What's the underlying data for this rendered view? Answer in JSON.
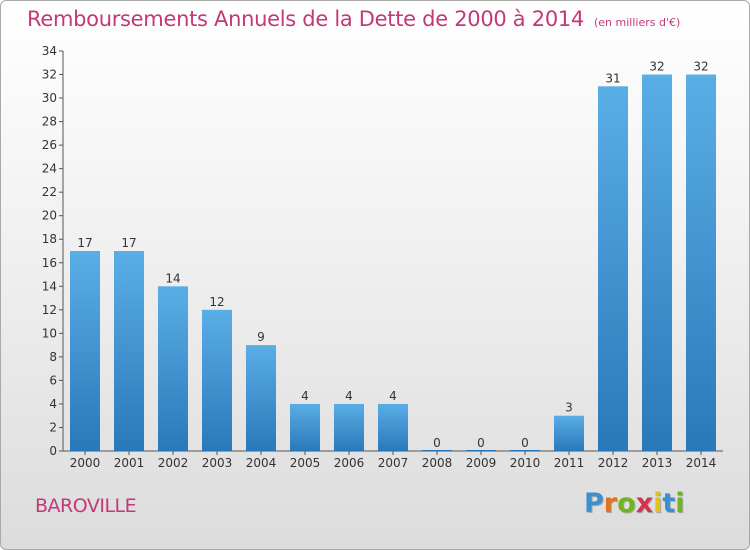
{
  "header": {
    "title": "Remboursements Annuels de la Dette de 2000 à 2014",
    "unit": "(en milliers d'€)"
  },
  "footer": {
    "commune": "BAROVILLE",
    "logo_letters": [
      "P",
      "r",
      "o",
      "x",
      "i",
      "t",
      "i"
    ],
    "logo_colors": [
      "#3c8fd1",
      "#e0731f",
      "#71b51e",
      "#d8304f",
      "#e0c41a",
      "#3c8fd1",
      "#71b51e"
    ]
  },
  "chart_data": {
    "type": "bar",
    "categories": [
      "2000",
      "2001",
      "2002",
      "2003",
      "2004",
      "2005",
      "2006",
      "2007",
      "2008",
      "2009",
      "2010",
      "2011",
      "2012",
      "2013",
      "2014"
    ],
    "values": [
      17,
      17,
      14,
      12,
      9,
      4,
      4,
      4,
      0,
      0,
      0,
      3,
      31,
      32,
      32
    ],
    "title": "Remboursements Annuels de la Dette de 2000 à 2014",
    "xlabel": "",
    "ylabel": "",
    "ylim": [
      0,
      34
    ],
    "yticks": [
      0,
      2,
      4,
      6,
      8,
      10,
      12,
      14,
      16,
      18,
      20,
      22,
      24,
      26,
      28,
      30,
      32,
      34
    ],
    "grid": false,
    "legend": "none",
    "bar_color_light": "#5aaee6",
    "bar_color_dark": "#2a78b9"
  }
}
